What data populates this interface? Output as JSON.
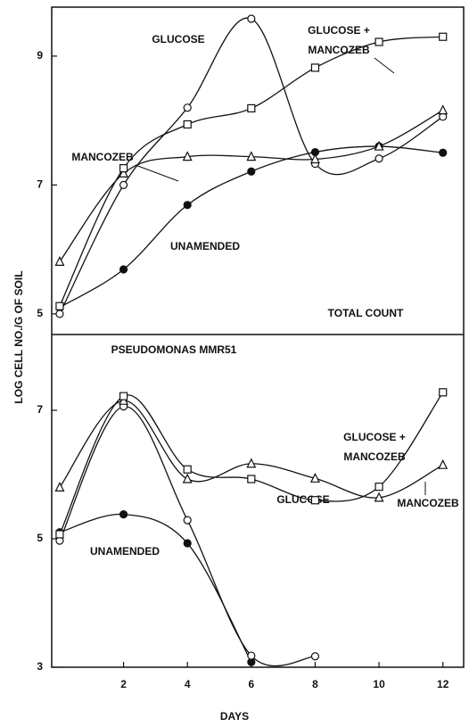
{
  "axis_labels": {
    "x": "DAYS",
    "y": "LOG CELL NO./G OF SOIL"
  },
  "chart_data": [
    {
      "type": "line",
      "title": "TOTAL COUNT",
      "x": [
        0,
        2,
        4,
        6,
        8,
        10,
        12
      ],
      "xlim": [
        -0.25,
        12.65
      ],
      "ylim": [
        4.68,
        9.76
      ],
      "yticks": [
        5,
        7,
        9
      ],
      "series": [
        {
          "name": [
            "UNAMENDED"
          ],
          "marker": "filled-circle",
          "color": "#111111",
          "values": [
            5.1,
            5.69,
            6.69,
            7.21,
            7.51,
            7.6,
            7.5
          ]
        },
        {
          "name": [
            "GLUCOSE"
          ],
          "marker": "circle",
          "color": "#111111",
          "values": [
            5.0,
            7.0,
            8.2,
            9.58,
            7.33,
            7.41,
            8.06
          ]
        },
        {
          "name": [
            "MANCOZEB"
          ],
          "marker": "triangle",
          "color": "#111111",
          "values": [
            5.81,
            7.18,
            7.44,
            7.44,
            7.4,
            7.6,
            8.16
          ]
        },
        {
          "name": [
            "GLUCOSE +",
            "MANCOZEB"
          ],
          "marker": "square",
          "color": "#111111",
          "values": [
            5.12,
            7.26,
            7.94,
            8.19,
            8.82,
            9.22,
            9.3
          ]
        }
      ]
    },
    {
      "type": "line",
      "title": "PSEUDOMONAS MMR51",
      "x": [
        0,
        2,
        4,
        6,
        8,
        10,
        12
      ],
      "xlim": [
        -0.25,
        12.65
      ],
      "ylim": [
        3,
        8.18
      ],
      "yticks": [
        3,
        5,
        7
      ],
      "xticks": [
        2,
        4,
        6,
        8,
        10,
        12
      ],
      "series": [
        {
          "name": [
            "UNAMENDED"
          ],
          "marker": "filled-circle",
          "color": "#111111",
          "values": [
            5.1,
            5.38,
            4.93,
            3.08,
            null,
            null,
            null
          ]
        },
        {
          "name": [
            "GLUCOSE"
          ],
          "marker": "circle",
          "color": "#111111",
          "values": [
            4.97,
            7.06,
            5.29,
            3.18,
            3.17,
            null,
            null
          ]
        },
        {
          "name": [
            "MANCOZEB"
          ],
          "marker": "triangle",
          "color": "#111111",
          "values": [
            5.8,
            7.15,
            5.93,
            6.17,
            5.94,
            5.64,
            6.15
          ]
        },
        {
          "name": [
            "GLUCOSE +",
            "MANCOZEB"
          ],
          "marker": "square",
          "color": "#111111",
          "values": [
            5.07,
            7.22,
            6.08,
            5.93,
            5.6,
            5.81,
            7.28
          ]
        }
      ]
    }
  ]
}
